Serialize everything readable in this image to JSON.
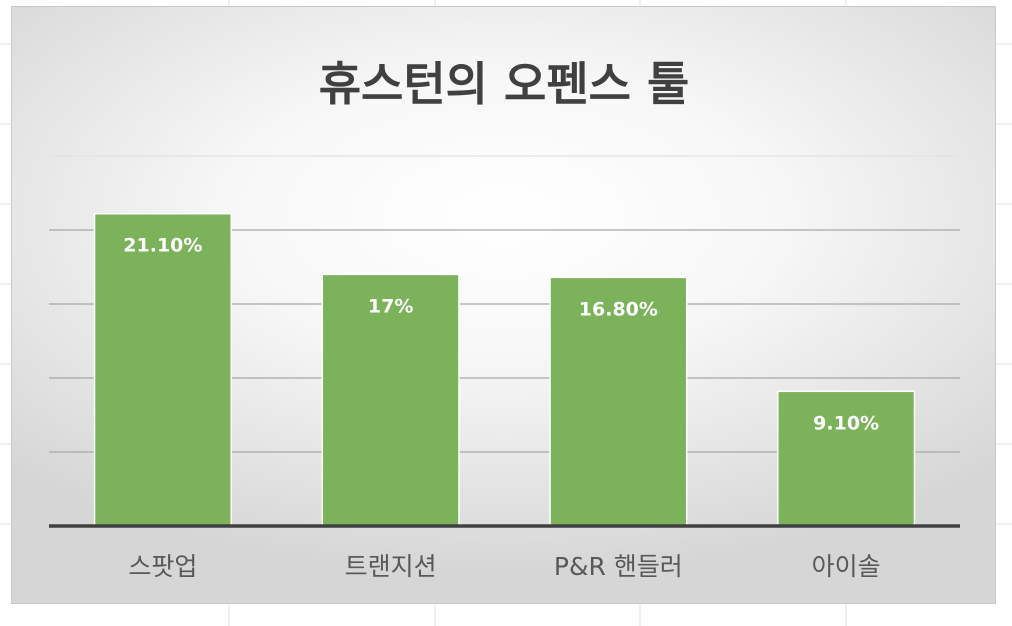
{
  "chart_data": {
    "type": "bar",
    "title": "휴스턴의 오펜스 툴",
    "categories": [
      "스팟업",
      "트랜지션",
      "P&R 핸들러",
      "아이솔"
    ],
    "values": [
      21.1,
      17,
      16.8,
      9.1
    ],
    "data_labels": [
      "21.10%",
      "17%",
      "16.80%",
      "9.10%"
    ],
    "ylim": [
      0,
      25
    ],
    "gridlines": true,
    "gridline_values": [
      5,
      10,
      15,
      20,
      25
    ],
    "legend": "none",
    "bar_color": "#7bb25a",
    "bar_border_color": "#ffffff",
    "axis_color": "#404040",
    "gridline_color": "#d9d9d9"
  }
}
